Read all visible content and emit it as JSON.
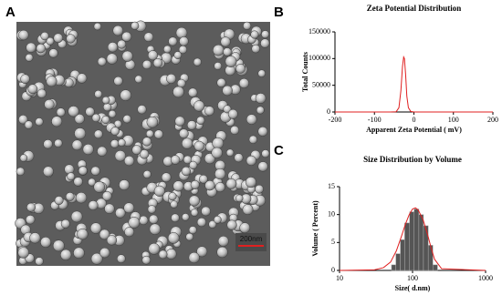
{
  "panel_labels": [
    "A",
    "B",
    "C"
  ],
  "image": {
    "scale_bar": "200nm"
  },
  "chart_data": [
    {
      "type": "line",
      "title": "Zeta Potential Distribution",
      "x_label": "Apparent Zeta Potential ( mV)",
      "y_label": "Total Counts",
      "x": [
        -200,
        -60,
        -45,
        -38,
        -33,
        -29,
        -26,
        -24,
        -21,
        -18,
        -14,
        -8,
        0,
        200
      ],
      "series": [
        {
          "name": "Total Counts",
          "color": "#e02020",
          "values": [
            0,
            0,
            500,
            8000,
            40000,
            85000,
            103000,
            100000,
            70000,
            30000,
            8000,
            1000,
            0,
            0
          ]
        }
      ],
      "xlim": [
        -200,
        200
      ],
      "xticks": [
        -200,
        -100,
        0,
        100,
        200
      ],
      "ylim": [
        0,
        150000
      ],
      "yticks": [
        0,
        50000,
        100000,
        150000
      ]
    },
    {
      "type": "histogram",
      "title": "Size Distribution by Volume",
      "x_label": "Size( d.nm)",
      "y_label": "Volume ( Percent)",
      "bins": [
        51.5,
        59,
        68,
        78,
        91,
        105,
        122,
        141,
        164,
        190,
        220
      ],
      "values": [
        1,
        3,
        5.5,
        8.5,
        10.5,
        11,
        10,
        8,
        4.5,
        1
      ],
      "color": "#555555",
      "curve": {
        "color": "#e02020",
        "x": [
          10,
          30,
          40,
          50,
          60,
          70,
          80,
          90,
          100,
          110,
          120,
          140,
          160,
          180,
          200,
          250,
          1000
        ],
        "values": [
          0,
          0.1,
          0.5,
          1.5,
          3.5,
          6,
          8.3,
          10,
          11,
          11.2,
          10.8,
          9,
          6.5,
          4,
          2,
          0.3,
          0
        ]
      },
      "x_scale": "log",
      "xlim": [
        10,
        1000
      ],
      "xticks": [
        10,
        100,
        1000
      ],
      "ylim": [
        0,
        15
      ],
      "yticks": [
        0,
        5,
        10,
        15
      ]
    }
  ]
}
